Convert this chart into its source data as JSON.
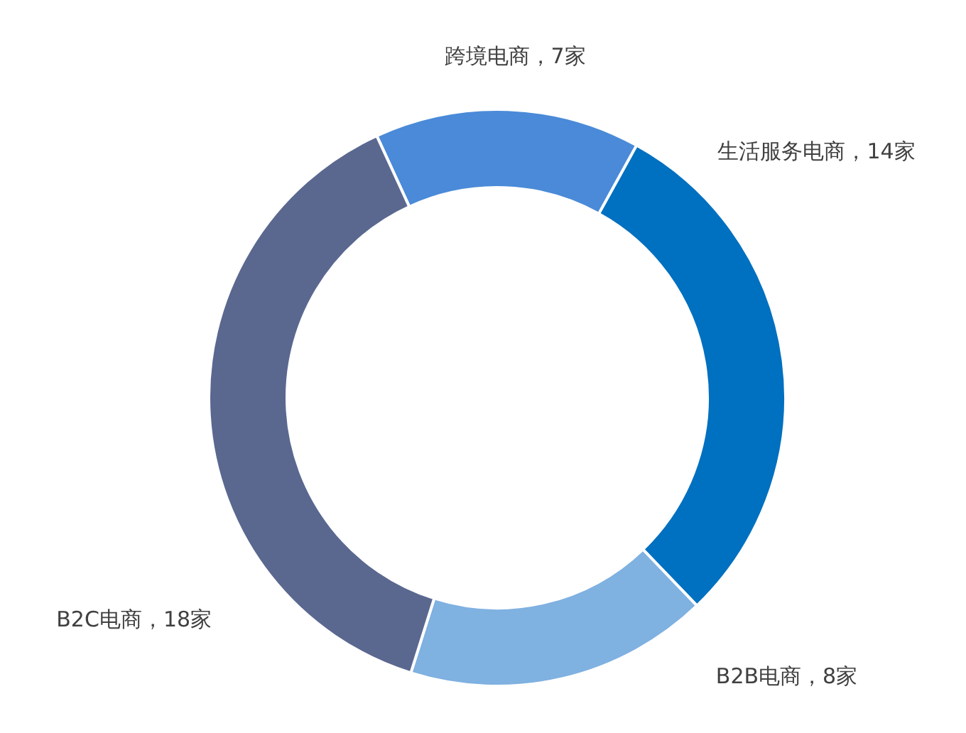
{
  "chart_data": {
    "type": "donut",
    "categories": [
      "跨境电商，7家",
      "生活服务电商，14家",
      "B2B电商，8家",
      "B2C电商，18家"
    ],
    "values": [
      7,
      14,
      8,
      18
    ],
    "colors": [
      "#4a8ad8",
      "#0070c0",
      "#7fb1e1",
      "#5a6890"
    ]
  }
}
